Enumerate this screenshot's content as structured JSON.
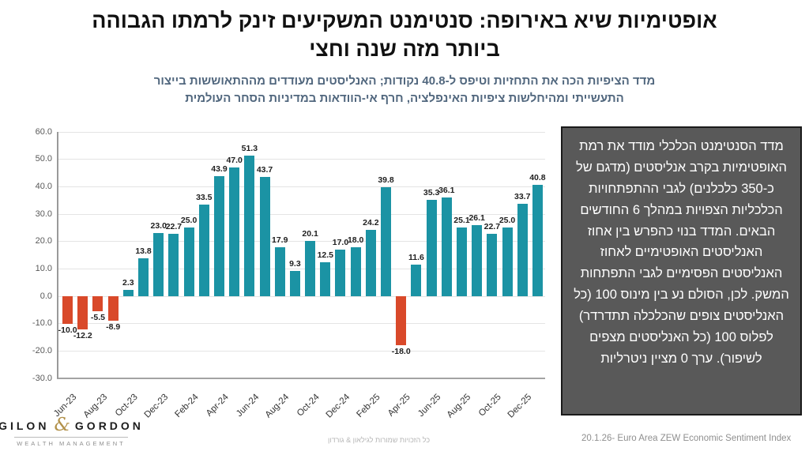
{
  "page": {
    "title_line1": "אופטימיות שיא באירופה: סנטימנט המשקיעים זינק לרמתו הגבוהה",
    "title_line2": "ביותר מזה שנה וחצי",
    "subtitle_line1": "מדד הציפיות הכה את התחזיות וטיפס ל-40.8 נקודות; האנליסטים מעודדים מההתאוששות בייצור",
    "subtitle_line2": "התעשייתי ומהיחלשות ציפיות האינפלציה, חרף אי-הוודאות במדיניות הסחר העולמית"
  },
  "chart_data": {
    "type": "bar",
    "title": "",
    "xlabel": "",
    "ylabel": "",
    "values": [
      -10.0,
      -12.2,
      -5.5,
      -8.9,
      2.3,
      13.8,
      23.0,
      22.7,
      25.0,
      33.5,
      43.9,
      47.0,
      51.3,
      43.7,
      17.9,
      9.3,
      20.1,
      12.5,
      17.0,
      18.0,
      24.2,
      39.8,
      -18.0,
      11.6,
      35.3,
      36.1,
      25.1,
      26.1,
      22.7,
      25.0,
      33.7,
      40.8
    ],
    "x_tick_labels": [
      "Jun-23",
      "Aug-23",
      "Oct-23",
      "Dec-23",
      "Feb-24",
      "Apr-24",
      "Jun-24",
      "Aug-24",
      "Oct-24",
      "Dec-24",
      "Feb-25",
      "Apr-25",
      "Jun-25",
      "Aug-25",
      "Oct-25",
      "Dec-25"
    ],
    "tick_every": 2,
    "y_ticks": [
      60,
      50,
      40,
      30,
      20,
      10,
      0,
      -10,
      -20,
      -30
    ],
    "ylim": [
      -30,
      60
    ],
    "grid": true,
    "legend": false,
    "value_labels": true,
    "positive_color": "#1B93A4",
    "negative_color": "#D9492A"
  },
  "info_box": {
    "text": "מדד הסנטימנט הכלכלי מודד את רמת האופטימיות בקרב אנליסטים (מדגם של כ-350  כלכלנים) לגבי ההתפתחויות הכלכליות הצפויות במהלך 6 החודשים הבאים. המדד בנוי כהפרש בין אחוז האנליסטים האופטימיים לאחוז האנליסטים הפסימיים לגבי התפתחות המשק. לכן, הסולם נע בין מינוס 100 (כל האנליסטים צופים שהכלכלה תתדרדר) לפלוס 100 (כל האנליסטים מצפים לשיפור). ערך 0 מציין ניטרליות",
    "bg_color": "#595959",
    "text_color": "#FFFFFF",
    "border_color": "#1A1A1A"
  },
  "footer": {
    "logo": {
      "name_left": "GILON",
      "ampersand": "&",
      "name_right": "GORDON",
      "subtitle": "WEALTH MANAGEMENT",
      "accent_color": "#B2914A"
    },
    "copyright": "כל הזכויות שמורות לגילאון & גורדון",
    "source": "20.1.26- Euro Area ZEW Economic Sentiment Index"
  },
  "colors": {
    "title": "#111111",
    "subtitle": "#51677E"
  }
}
